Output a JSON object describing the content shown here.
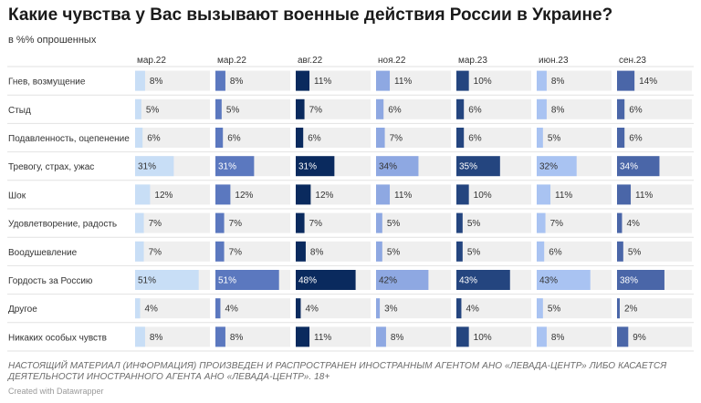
{
  "title": "Какие чувства у Вас вызывают военные действия России в Украине?",
  "subtitle": "в %% опрошенных",
  "notice": "НАСТОЯЩИЙ МАТЕРИАЛ (ИНФОРМАЦИЯ) ПРОИЗВЕДЕН И РАСПРОСТРАНЕН ИНОСТРАННЫМ АГЕНТОМ АНО «ЛЕВАДА-ЦЕНТР» ЛИБО КАСАЕТСЯ ДЕЯТЕЛЬНОСТИ ИНОСТРАННОГО АГЕНТА АНО «ЛЕВАДА-ЦЕНТР». 18+",
  "credit": "Created with Datawrapper",
  "chart_data": {
    "type": "bar",
    "layout": "small-multiples",
    "categories": [
      "Гнев, возмущение",
      "Стыд",
      "Подавленность, оцепенение",
      "Тревогу, страх, ужас",
      "Шок",
      "Удовлетворение, радость",
      "Воодушевление",
      "Гордость за Россию",
      "Другое",
      "Никаких особых чувств"
    ],
    "xlim": [
      0,
      60
    ],
    "series": [
      {
        "name": "мар.22",
        "color": "#c8def6",
        "values": [
          8,
          5,
          6,
          31,
          12,
          7,
          7,
          51,
          4,
          8
        ]
      },
      {
        "name": "мар.22",
        "color": "#5b78bf",
        "values": [
          8,
          5,
          6,
          31,
          12,
          7,
          7,
          51,
          4,
          8
        ]
      },
      {
        "name": "авг.22",
        "color": "#0a2a5e",
        "values": [
          11,
          7,
          6,
          31,
          12,
          7,
          8,
          48,
          4,
          11
        ]
      },
      {
        "name": "ноя.22",
        "color": "#8ea8e2",
        "values": [
          11,
          6,
          7,
          34,
          11,
          5,
          5,
          42,
          3,
          8
        ]
      },
      {
        "name": "мар.23",
        "color": "#24457f",
        "values": [
          10,
          6,
          6,
          35,
          10,
          5,
          5,
          43,
          4,
          10
        ]
      },
      {
        "name": "июн.23",
        "color": "#a9c3f2",
        "values": [
          8,
          8,
          5,
          32,
          11,
          7,
          6,
          43,
          5,
          8
        ]
      },
      {
        "name": "сен.23",
        "color": "#4a66a8",
        "values": [
          14,
          6,
          6,
          34,
          11,
          4,
          5,
          38,
          2,
          9
        ]
      }
    ]
  }
}
